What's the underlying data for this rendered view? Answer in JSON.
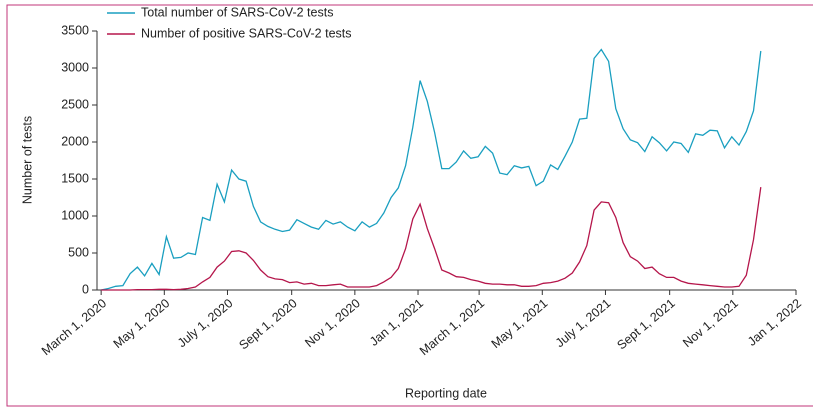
{
  "chart_data": {
    "type": "line",
    "x_label": "Reporting date",
    "y_label": "Number of tests",
    "x": [
      "2020-03-01",
      "2020-03-08",
      "2020-03-15",
      "2020-03-22",
      "2020-03-29",
      "2020-04-05",
      "2020-04-12",
      "2020-04-19",
      "2020-04-26",
      "2020-05-03",
      "2020-05-10",
      "2020-05-17",
      "2020-05-24",
      "2020-05-31",
      "2020-06-07",
      "2020-06-14",
      "2020-06-21",
      "2020-06-28",
      "2020-07-05",
      "2020-07-12",
      "2020-07-19",
      "2020-07-26",
      "2020-08-02",
      "2020-08-09",
      "2020-08-16",
      "2020-08-23",
      "2020-08-30",
      "2020-09-06",
      "2020-09-13",
      "2020-09-20",
      "2020-09-27",
      "2020-10-04",
      "2020-10-11",
      "2020-10-18",
      "2020-10-25",
      "2020-11-01",
      "2020-11-08",
      "2020-11-15",
      "2020-11-22",
      "2020-11-29",
      "2020-12-06",
      "2020-12-13",
      "2020-12-20",
      "2020-12-27",
      "2021-01-03",
      "2021-01-10",
      "2021-01-17",
      "2021-01-24",
      "2021-01-31",
      "2021-02-07",
      "2021-02-14",
      "2021-02-21",
      "2021-02-28",
      "2021-03-07",
      "2021-03-14",
      "2021-03-21",
      "2021-03-28",
      "2021-04-04",
      "2021-04-11",
      "2021-04-18",
      "2021-04-25",
      "2021-05-02",
      "2021-05-09",
      "2021-05-16",
      "2021-05-23",
      "2021-05-30",
      "2021-06-06",
      "2021-06-13",
      "2021-06-20",
      "2021-06-27",
      "2021-07-04",
      "2021-07-11",
      "2021-07-18",
      "2021-07-25",
      "2021-08-01",
      "2021-08-08",
      "2021-08-15",
      "2021-08-22",
      "2021-08-29",
      "2021-09-05",
      "2021-09-12",
      "2021-09-19",
      "2021-09-26",
      "2021-10-03",
      "2021-10-10",
      "2021-10-17",
      "2021-10-24",
      "2021-10-31",
      "2021-11-07",
      "2021-11-14",
      "2021-11-21",
      "2021-11-28"
    ],
    "series": [
      {
        "name": "Total number of SARS-CoV-2 tests",
        "color": "#1a9fc0",
        "values": [
          0,
          20,
          50,
          60,
          220,
          310,
          190,
          360,
          210,
          720,
          430,
          440,
          500,
          480,
          980,
          940,
          1430,
          1190,
          1620,
          1500,
          1470,
          1130,
          920,
          860,
          820,
          790,
          810,
          950,
          900,
          850,
          820,
          940,
          890,
          920,
          850,
          800,
          920,
          850,
          900,
          1040,
          1250,
          1380,
          1680,
          2200,
          2830,
          2550,
          2130,
          1640,
          1640,
          1730,
          1880,
          1780,
          1800,
          1940,
          1850,
          1580,
          1560,
          1680,
          1650,
          1670,
          1410,
          1470,
          1690,
          1630,
          1810,
          2000,
          2310,
          2320,
          3130,
          3250,
          3090,
          2450,
          2180,
          2030,
          1990,
          1870,
          2070,
          1990,
          1880,
          2000,
          1980,
          1860,
          2110,
          2090,
          2160,
          2150,
          1920,
          2070,
          1960,
          2140,
          2420,
          3230
        ]
      },
      {
        "name": "Number of positive SARS-CoV-2 tests",
        "color": "#b5164b",
        "values": [
          0,
          0,
          0,
          0,
          0,
          5,
          5,
          5,
          10,
          10,
          5,
          10,
          20,
          40,
          110,
          170,
          310,
          390,
          520,
          530,
          500,
          400,
          270,
          180,
          150,
          140,
          100,
          110,
          80,
          90,
          60,
          60,
          70,
          80,
          40,
          40,
          40,
          40,
          60,
          110,
          170,
          290,
          560,
          960,
          1160,
          830,
          560,
          270,
          230,
          180,
          170,
          140,
          120,
          90,
          80,
          80,
          70,
          70,
          50,
          50,
          60,
          90,
          100,
          120,
          160,
          230,
          380,
          600,
          1080,
          1190,
          1180,
          980,
          640,
          450,
          390,
          290,
          310,
          220,
          170,
          170,
          120,
          90,
          80,
          70,
          60,
          50,
          40,
          40,
          50,
          200,
          680,
          1390
        ]
      }
    ],
    "xlim": [
      "2020-02-26",
      "2022-01-01"
    ],
    "xticks": [
      {
        "value": "2020-03-01",
        "label": "March 1, 2020"
      },
      {
        "value": "2020-05-01",
        "label": "May 1, 2020"
      },
      {
        "value": "2020-07-01",
        "label": "July 1, 2020"
      },
      {
        "value": "2020-09-01",
        "label": "Sept 1, 2020"
      },
      {
        "value": "2020-11-01",
        "label": "Nov 1, 2020"
      },
      {
        "value": "2021-01-01",
        "label": "Jan 1, 2021"
      },
      {
        "value": "2021-03-01",
        "label": "March 1, 2021"
      },
      {
        "value": "2021-05-01",
        "label": "May 1, 2021"
      },
      {
        "value": "2021-07-01",
        "label": "July 1, 2021"
      },
      {
        "value": "2021-09-01",
        "label": "Sept 1, 2021"
      },
      {
        "value": "2021-11-01",
        "label": "Nov 1, 2021"
      },
      {
        "value": "2022-01-01",
        "label": "Jan 1, 2022"
      }
    ],
    "ylim": [
      0,
      3500
    ],
    "yticks": [
      0,
      500,
      1000,
      1500,
      2000,
      2500,
      3000,
      3500
    ],
    "legend": "top-left",
    "grid": false
  }
}
